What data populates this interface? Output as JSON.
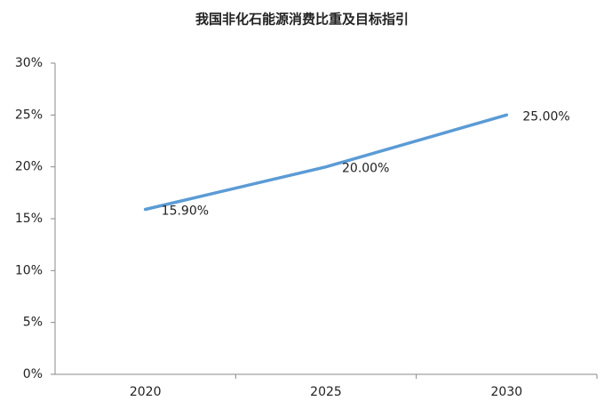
{
  "chart_data": {
    "type": "line",
    "title": "我国非化石能源消费比重及目标指引",
    "categories": [
      "2020",
      "2025",
      "2030"
    ],
    "series": [
      {
        "color": "#5b9bd5",
        "values": [
          15.9,
          20,
          25
        ],
        "value_labels": [
          "15.90%",
          "20.00%",
          "25.00%"
        ]
      }
    ],
    "ylim": [
      0,
      30
    ],
    "yticks": [
      {
        "value": 0,
        "label": "0%"
      },
      {
        "value": 5,
        "label": "5%"
      },
      {
        "value": 10,
        "label": "10%"
      },
      {
        "value": 15,
        "label": "15%"
      },
      {
        "value": 20,
        "label": "20%"
      },
      {
        "value": 25,
        "label": "25%"
      },
      {
        "value": 30,
        "label": "30%"
      }
    ],
    "grid": false
  }
}
